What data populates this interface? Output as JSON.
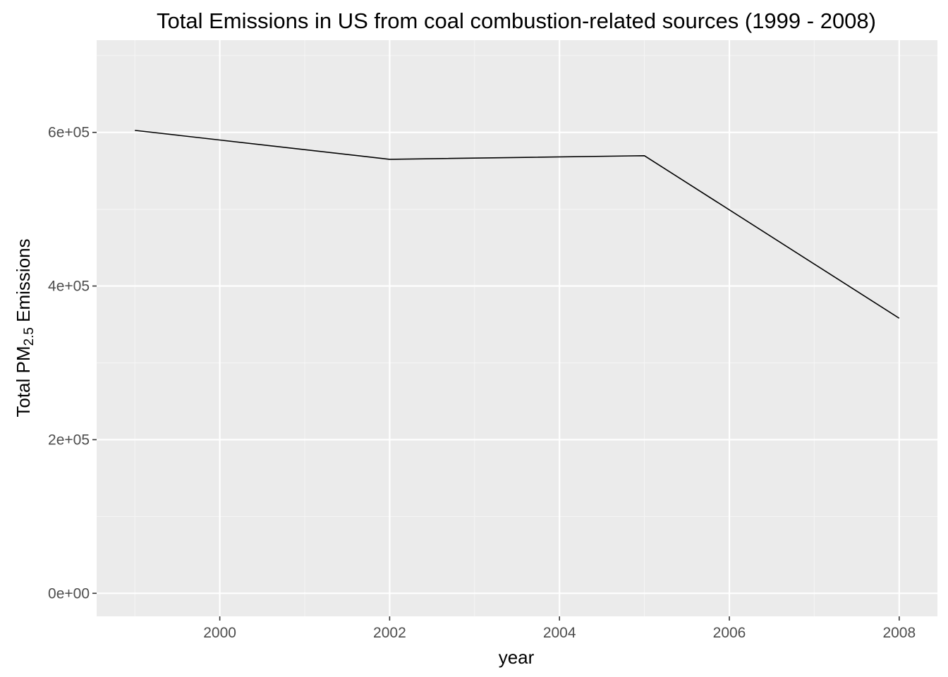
{
  "chart_data": {
    "type": "line",
    "title": "Total Emissions in US from coal combustion-related sources (1999 - 2008)",
    "xlabel": "year",
    "ylabel": {
      "prefix": "Total PM",
      "subscript": "2.5",
      "suffix": " Emissions"
    },
    "x": [
      1999,
      2002,
      2005,
      2008
    ],
    "series": [
      {
        "values": [
          602624,
          564940,
          569655,
          358084
        ]
      }
    ],
    "xlim": [
      1998.55,
      2008.45
    ],
    "ylim": [
      -30000,
      720000
    ],
    "x_ticks": [
      2000,
      2002,
      2004,
      2006,
      2008
    ],
    "x_tick_labels": [
      "2000",
      "2002",
      "2004",
      "2006",
      "2008"
    ],
    "x_minor_ticks": [
      1999,
      2001,
      2003,
      2005,
      2007
    ],
    "y_ticks": [
      0,
      200000,
      400000,
      600000
    ],
    "y_tick_labels": [
      "0e+00",
      "2e+05",
      "4e+05",
      "6e+05"
    ],
    "y_minor_ticks": [
      100000,
      300000,
      500000,
      700000
    ],
    "grid": true,
    "legend": "none",
    "colors": {
      "panel_background": "#ebebeb",
      "grid_major": "#ffffff",
      "grid_minor": "#f5f5f5",
      "line": "#000000",
      "tick": "#333333"
    }
  }
}
